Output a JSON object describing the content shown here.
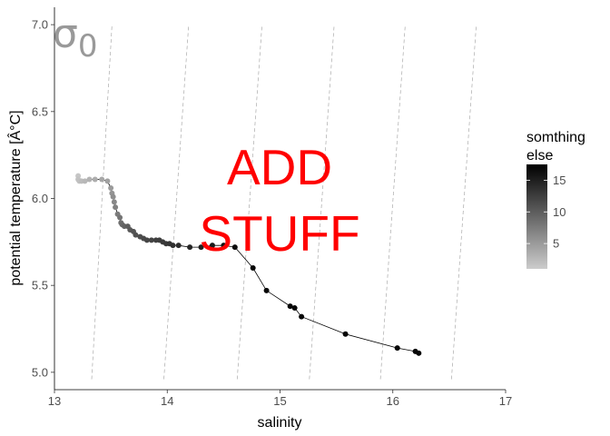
{
  "chart_data": {
    "type": "scatter",
    "xlabel": "salinity",
    "ylabel": "potential temperature [Â°C]",
    "xlim": [
      13,
      17
    ],
    "ylim": [
      4.9,
      7.1
    ],
    "x_ticks": [
      "13",
      "14",
      "15",
      "16",
      "17"
    ],
    "y_ticks": [
      "5.0",
      "5.5",
      "6.0",
      "6.5",
      "7.0"
    ],
    "grid": false,
    "isopycnal_label": {
      "main": "σ",
      "subscript": "0"
    },
    "isopycnals": [
      {
        "x_bottom": 13.33,
        "x_top": 13.51
      },
      {
        "x_bottom": 13.97,
        "x_top": 14.19
      },
      {
        "x_bottom": 14.62,
        "x_top": 14.84
      },
      {
        "x_bottom": 15.26,
        "x_top": 15.48
      },
      {
        "x_bottom": 15.89,
        "x_top": 16.11
      },
      {
        "x_bottom": 16.52,
        "x_top": 16.74
      }
    ],
    "annotation": [
      "ADD",
      "STUFF"
    ],
    "colorbar": {
      "title": [
        "somthing",
        "else"
      ],
      "range": [
        1,
        17.5
      ],
      "ticks": [
        "5",
        "10",
        "15"
      ],
      "low_color": "#cccccc",
      "high_color": "#000000"
    },
    "series": [
      {
        "x": [
          13.21,
          13.21,
          13.22,
          13.24,
          13.27,
          13.31,
          13.36,
          13.42,
          13.47,
          13.5,
          13.51,
          13.52,
          13.53,
          13.54,
          13.56,
          13.58,
          13.59,
          13.6,
          13.62,
          13.65,
          13.67,
          13.7,
          13.72,
          13.76,
          13.79,
          13.82,
          13.86,
          13.9,
          13.93,
          13.96,
          13.99,
          14.02,
          14.05,
          14.1,
          14.2,
          14.3,
          14.4,
          14.5,
          14.6,
          14.76,
          14.88,
          15.09,
          15.13,
          15.19,
          15.58,
          16.04,
          16.2,
          16.23
        ],
        "y": [
          6.13,
          6.11,
          6.1,
          6.1,
          6.1,
          6.11,
          6.11,
          6.11,
          6.1,
          6.06,
          6.03,
          6.01,
          5.98,
          5.95,
          5.91,
          5.89,
          5.86,
          5.85,
          5.84,
          5.84,
          5.82,
          5.81,
          5.79,
          5.78,
          5.77,
          5.76,
          5.76,
          5.76,
          5.76,
          5.75,
          5.74,
          5.74,
          5.73,
          5.73,
          5.72,
          5.72,
          5.73,
          5.73,
          5.72,
          5.6,
          5.47,
          5.38,
          5.37,
          5.32,
          5.22,
          5.14,
          5.12,
          5.11
        ],
        "color_value": [
          1.5,
          1.8,
          2,
          2.3,
          2.6,
          3,
          3.5,
          4,
          4.5,
          5,
          5.5,
          6,
          6.5,
          7,
          7.5,
          8,
          8.5,
          9,
          9.5,
          10,
          10.3,
          10.6,
          10.9,
          11.2,
          11.5,
          11.8,
          12,
          12.3,
          12.5,
          12.8,
          13,
          13.3,
          13.6,
          14,
          14.5,
          15,
          15.5,
          16,
          16.5,
          17,
          17,
          17,
          17,
          17,
          17,
          17,
          17,
          17
        ]
      }
    ]
  }
}
